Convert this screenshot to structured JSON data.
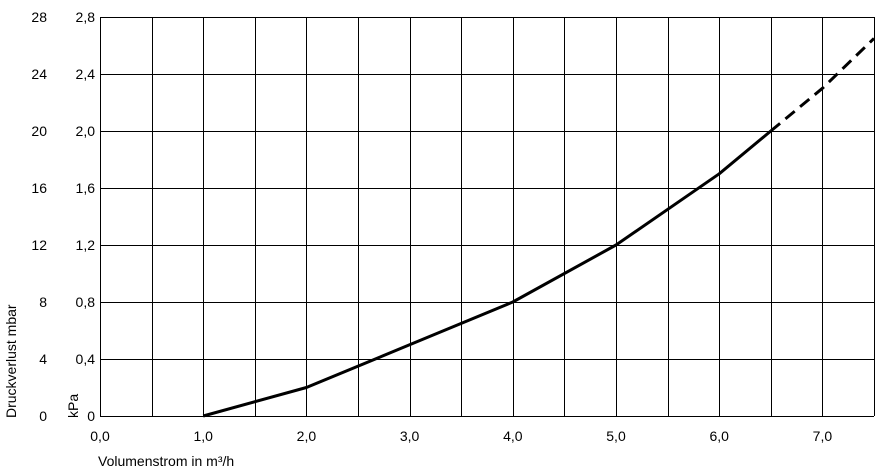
{
  "chart_data": {
    "type": "line",
    "xlabel": "Volumenstrom in m³/h",
    "ylabel_left": "Druckverlust mbar",
    "ylabel_right": "kPa",
    "xlim": [
      0,
      7.5
    ],
    "ylim_mbar": [
      0,
      28
    ],
    "ylim_kpa": [
      0,
      2.8
    ],
    "x_ticks": [
      "0,0",
      "1,0",
      "2,0",
      "3,0",
      "4,0",
      "5,0",
      "6,0",
      "7,0"
    ],
    "y_ticks_mbar": [
      "0",
      "4",
      "8",
      "12",
      "16",
      "20",
      "24",
      "28"
    ],
    "y_ticks_kpa": [
      "0",
      "0,4",
      "0,8",
      "1,2",
      "1,6",
      "2,0",
      "2,4",
      "2,8"
    ],
    "grid": true,
    "series": [
      {
        "style": "solid",
        "color": "#000000",
        "x": [
          1.0,
          2.0,
          3.0,
          4.0,
          5.0,
          6.0,
          6.5
        ],
        "y": [
          0,
          2,
          5,
          8,
          12,
          17,
          20
        ]
      },
      {
        "style": "dashed",
        "color": "#000000",
        "x": [
          6.5,
          7.0,
          7.5
        ],
        "y": [
          20,
          23,
          26.5
        ]
      }
    ]
  }
}
